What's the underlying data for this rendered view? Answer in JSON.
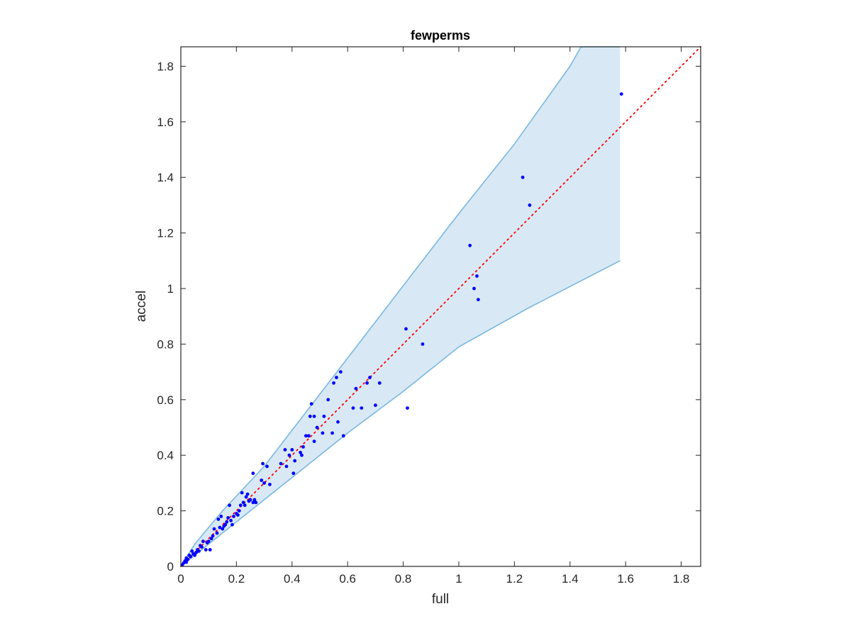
{
  "chart_data": {
    "type": "scatter",
    "title": "fewperms",
    "xlabel": "full",
    "ylabel": "accel",
    "xlim": [
      0,
      1.87
    ],
    "ylim": [
      0,
      1.87
    ],
    "xticks": [
      "0",
      "0.2",
      "0.4",
      "0.6",
      "0.8",
      "1",
      "1.2",
      "1.4",
      "1.6",
      "1.8"
    ],
    "yticks": [
      "0",
      "0.2",
      "0.4",
      "0.6",
      "0.8",
      "1",
      "1.2",
      "1.4",
      "1.6",
      "1.8"
    ],
    "grid": false,
    "reference_line": {
      "style": "dotted",
      "equation": "y = x",
      "color": "#ff0000"
    },
    "band": {
      "color": "#9ec9e6",
      "edge_color": "#7ab7e0",
      "upper": [
        [
          0,
          0
        ],
        [
          0.05,
          0.08
        ],
        [
          0.15,
          0.2
        ],
        [
          0.3,
          0.36
        ],
        [
          0.5,
          0.62
        ],
        [
          0.8,
          1.01
        ],
        [
          1.0,
          1.27
        ],
        [
          1.2,
          1.52
        ],
        [
          1.4,
          1.8
        ],
        [
          1.44,
          1.87
        ],
        [
          1.58,
          1.87
        ]
      ],
      "lower": [
        [
          0,
          0
        ],
        [
          0.1,
          0.08
        ],
        [
          0.3,
          0.24
        ],
        [
          0.5,
          0.4
        ],
        [
          0.6,
          0.48
        ],
        [
          0.8,
          0.63
        ],
        [
          1.0,
          0.79
        ],
        [
          1.25,
          0.93
        ],
        [
          1.58,
          1.1
        ]
      ]
    },
    "series": [
      {
        "color": "#0000ff",
        "points": [
          [
            0.005,
            0.005
          ],
          [
            0.01,
            0.012
          ],
          [
            0.015,
            0.02
          ],
          [
            0.02,
            0.015
          ],
          [
            0.02,
            0.03
          ],
          [
            0.025,
            0.025
          ],
          [
            0.03,
            0.04
          ],
          [
            0.035,
            0.035
          ],
          [
            0.04,
            0.055
          ],
          [
            0.045,
            0.045
          ],
          [
            0.05,
            0.04
          ],
          [
            0.055,
            0.05
          ],
          [
            0.06,
            0.06
          ],
          [
            0.065,
            0.055
          ],
          [
            0.07,
            0.075
          ],
          [
            0.075,
            0.07
          ],
          [
            0.08,
            0.09
          ],
          [
            0.09,
            0.06
          ],
          [
            0.095,
            0.085
          ],
          [
            0.1,
            0.09
          ],
          [
            0.105,
            0.06
          ],
          [
            0.11,
            0.1
          ],
          [
            0.115,
            0.11
          ],
          [
            0.12,
            0.135
          ],
          [
            0.13,
            0.12
          ],
          [
            0.135,
            0.17
          ],
          [
            0.14,
            0.14
          ],
          [
            0.145,
            0.18
          ],
          [
            0.15,
            0.135
          ],
          [
            0.155,
            0.145
          ],
          [
            0.16,
            0.15
          ],
          [
            0.165,
            0.16
          ],
          [
            0.17,
            0.175
          ],
          [
            0.175,
            0.22
          ],
          [
            0.18,
            0.165
          ],
          [
            0.185,
            0.15
          ],
          [
            0.19,
            0.18
          ],
          [
            0.2,
            0.19
          ],
          [
            0.205,
            0.185
          ],
          [
            0.21,
            0.2
          ],
          [
            0.215,
            0.22
          ],
          [
            0.22,
            0.265
          ],
          [
            0.225,
            0.23
          ],
          [
            0.23,
            0.22
          ],
          [
            0.235,
            0.25
          ],
          [
            0.24,
            0.26
          ],
          [
            0.245,
            0.235
          ],
          [
            0.25,
            0.24
          ],
          [
            0.26,
            0.23
          ],
          [
            0.26,
            0.335
          ],
          [
            0.265,
            0.24
          ],
          [
            0.27,
            0.23
          ],
          [
            0.29,
            0.31
          ],
          [
            0.295,
            0.37
          ],
          [
            0.3,
            0.3
          ],
          [
            0.31,
            0.36
          ],
          [
            0.32,
            0.295
          ],
          [
            0.36,
            0.37
          ],
          [
            0.375,
            0.42
          ],
          [
            0.38,
            0.36
          ],
          [
            0.39,
            0.4
          ],
          [
            0.4,
            0.42
          ],
          [
            0.405,
            0.335
          ],
          [
            0.41,
            0.38
          ],
          [
            0.43,
            0.41
          ],
          [
            0.435,
            0.4
          ],
          [
            0.44,
            0.43
          ],
          [
            0.45,
            0.47
          ],
          [
            0.46,
            0.47
          ],
          [
            0.465,
            0.54
          ],
          [
            0.47,
            0.585
          ],
          [
            0.48,
            0.45
          ],
          [
            0.48,
            0.54
          ],
          [
            0.49,
            0.5
          ],
          [
            0.51,
            0.48
          ],
          [
            0.515,
            0.54
          ],
          [
            0.53,
            0.6
          ],
          [
            0.545,
            0.48
          ],
          [
            0.55,
            0.66
          ],
          [
            0.56,
            0.68
          ],
          [
            0.565,
            0.52
          ],
          [
            0.575,
            0.7
          ],
          [
            0.585,
            0.47
          ],
          [
            0.62,
            0.57
          ],
          [
            0.63,
            0.64
          ],
          [
            0.65,
            0.57
          ],
          [
            0.67,
            0.66
          ],
          [
            0.68,
            0.68
          ],
          [
            0.7,
            0.58
          ],
          [
            0.715,
            0.66
          ],
          [
            0.81,
            0.855
          ],
          [
            0.815,
            0.57
          ],
          [
            0.87,
            0.8
          ],
          [
            1.04,
            1.155
          ],
          [
            1.055,
            1.0
          ],
          [
            1.065,
            1.045
          ],
          [
            1.07,
            0.96
          ],
          [
            1.23,
            1.4
          ],
          [
            1.255,
            1.3
          ],
          [
            1.585,
            1.7
          ]
        ]
      }
    ]
  }
}
